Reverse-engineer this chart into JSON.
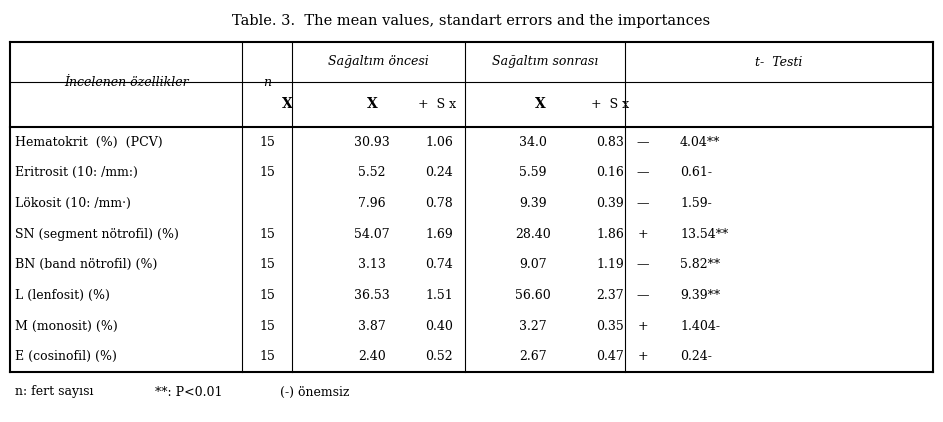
{
  "title": "Table. 3.  The mean values, standart errors and the importances",
  "rows": [
    [
      "Hematokrit  (%)  (PCV)",
      "15",
      "30.93",
      "1.06",
      "34.0",
      "0.83",
      "—",
      "4.04**"
    ],
    [
      "Eritrosit (10: /mm:)",
      "15",
      "5.52",
      "0.24",
      "5.59",
      "0.16",
      "—",
      "0.61-"
    ],
    [
      "Lökosit (10: /mm·)",
      "",
      "7.96",
      "0.78",
      "9.39",
      "0.39",
      "—",
      "1.59-"
    ],
    [
      "SN (segment nötrofil) (%)",
      "15",
      "54.07",
      "1.69",
      "28.40",
      "1.86",
      "+",
      "13.54**"
    ],
    [
      "BN (band nötrofil) (%)",
      "15",
      "3.13",
      "0.74",
      "9.07",
      "1.19",
      "—",
      "5.82**"
    ],
    [
      "L (lenfosit) (%)",
      "15",
      "36.53",
      "1.51",
      "56.60",
      "2.37",
      "—",
      "9.39**"
    ],
    [
      "M (monosit) (%)",
      "15",
      "3.87",
      "0.40",
      "3.27",
      "0.35",
      "+",
      "1.404-"
    ],
    [
      "E (cosinofil) (%)",
      "15",
      "2.40",
      "0.52",
      "2.67",
      "0.47",
      "+",
      "0.24-"
    ]
  ],
  "footnote1": "n: fert sayısı",
  "footnote2": "**: P<0.01",
  "footnote3": "(-) önemsiz",
  "bg_color": "#ffffff",
  "text_color": "#000000",
  "title_fontsize": 10.5,
  "body_fontsize": 9,
  "header_fontsize": 9
}
